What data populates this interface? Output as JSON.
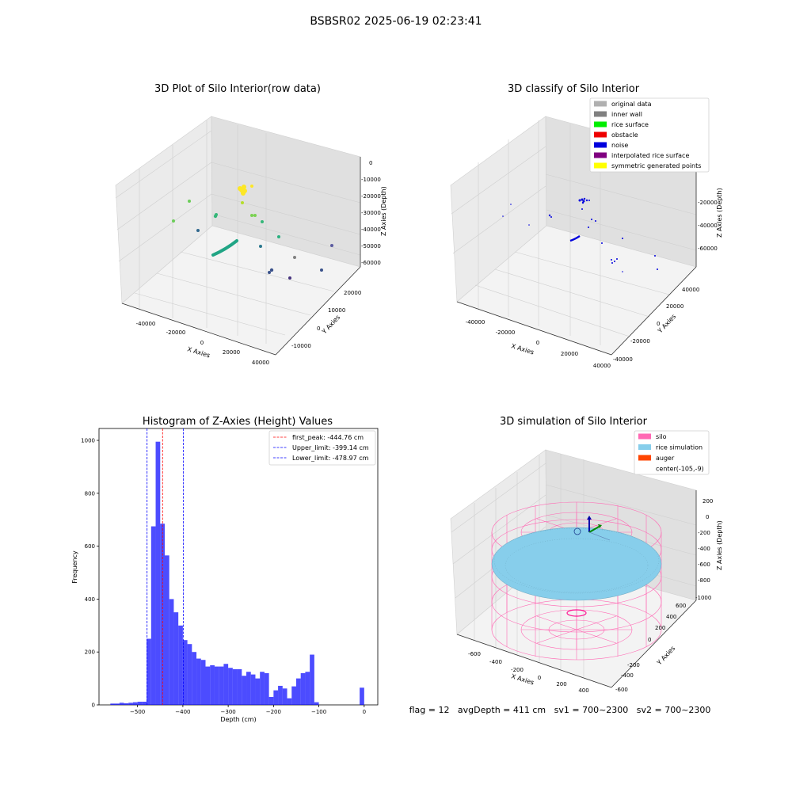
{
  "figure": {
    "suptitle": "BSBSR02 2025-06-19 02:23:41"
  },
  "panels": {
    "raw": {
      "title": "3D Plot of Silo Interior(row data)",
      "xlabel": "X Axies",
      "ylabel": "Y Axies",
      "zlabel": "Z Axies (Depth)",
      "xticks": [
        "-40000",
        "-20000",
        "0",
        "20000",
        "40000"
      ],
      "yticks": [
        "-10000",
        "0",
        "10000",
        "20000"
      ],
      "zticks": [
        "0",
        "-10000",
        "-20000",
        "-30000",
        "-40000",
        "-50000",
        "-60000"
      ]
    },
    "classify": {
      "title": "3D classify of Silo Interior",
      "xlabel": "X Axies",
      "ylabel": "Y Axies",
      "zlabel": "Z Axies (Depth)",
      "xticks": [
        "-40000",
        "-20000",
        "0",
        "20000",
        "40000"
      ],
      "yticks": [
        "-40000",
        "-20000",
        "0",
        "20000",
        "40000"
      ],
      "zticks": [
        "-20000",
        "-40000",
        "-60000"
      ],
      "legend": [
        {
          "label": "original data",
          "color": "#b0b0b0"
        },
        {
          "label": "inner wall",
          "color": "#808080"
        },
        {
          "label": "rice surface",
          "color": "#00ee00"
        },
        {
          "label": "obstacle",
          "color": "#ee0000"
        },
        {
          "label": "noise",
          "color": "#0000dd"
        },
        {
          "label": "interpolated rice surface",
          "color": "#800080"
        },
        {
          "label": "symmetric generated points",
          "color": "#ffff00"
        }
      ]
    },
    "simulation": {
      "title": "3D simulation of Silo Interior",
      "xlabel": "X Axies",
      "ylabel": "Y Axies",
      "zlabel": "Z Axies (Depth)",
      "xticks": [
        "-600",
        "-400",
        "-200",
        "0",
        "200",
        "400"
      ],
      "yticks": [
        "-600",
        "-400",
        "-200",
        "0",
        "200",
        "400",
        "600"
      ],
      "zticks": [
        "200",
        "0",
        "-200",
        "-400",
        "-600",
        "-800",
        "-1000"
      ],
      "legend": [
        {
          "label": "silo",
          "color": "#ff69b4"
        },
        {
          "label": "rice simulation",
          "color": "#87ceeb"
        },
        {
          "label": "auger",
          "color": "#ff4500"
        },
        {
          "label": "center(-105,-9)",
          "color": ""
        }
      ],
      "status_text": "flag = 12   avgDepth = 411 cm   sv1 = 700~2300   sv2 = 700~2300"
    }
  },
  "chart_data": {
    "type": "bar",
    "title": "Histogram of Z-Axies (Height) Values",
    "xlabel": "Depth (cm)",
    "ylabel": "Frequency",
    "xlim": [
      -585,
      30
    ],
    "ylim": [
      0,
      1045
    ],
    "xticks": [
      -500,
      -400,
      -300,
      -200,
      -100,
      0
    ],
    "yticks": [
      0,
      200,
      400,
      600,
      800,
      1000
    ],
    "bin_width": 10,
    "bins": [
      [
        -555,
        5
      ],
      [
        -545,
        5
      ],
      [
        -535,
        8
      ],
      [
        -525,
        6
      ],
      [
        -515,
        8
      ],
      [
        -505,
        10
      ],
      [
        -495,
        12
      ],
      [
        -485,
        12
      ],
      [
        -475,
        250
      ],
      [
        -465,
        675
      ],
      [
        -455,
        995
      ],
      [
        -445,
        685
      ],
      [
        -435,
        565
      ],
      [
        -425,
        400
      ],
      [
        -415,
        350
      ],
      [
        -405,
        300
      ],
      [
        -395,
        245
      ],
      [
        -385,
        230
      ],
      [
        -375,
        200
      ],
      [
        -365,
        175
      ],
      [
        -355,
        170
      ],
      [
        -345,
        145
      ],
      [
        -335,
        150
      ],
      [
        -325,
        145
      ],
      [
        -315,
        145
      ],
      [
        -305,
        155
      ],
      [
        -295,
        140
      ],
      [
        -285,
        135
      ],
      [
        -275,
        135
      ],
      [
        -265,
        110
      ],
      [
        -255,
        125
      ],
      [
        -245,
        115
      ],
      [
        -235,
        100
      ],
      [
        -225,
        125
      ],
      [
        -215,
        120
      ],
      [
        -205,
        30
      ],
      [
        -195,
        55
      ],
      [
        -185,
        72
      ],
      [
        -175,
        62
      ],
      [
        -165,
        25
      ],
      [
        -155,
        70
      ],
      [
        -145,
        100
      ],
      [
        -135,
        120
      ],
      [
        -125,
        125
      ],
      [
        -115,
        190
      ],
      [
        -105,
        10
      ],
      [
        -5,
        65
      ]
    ],
    "color": "#0000ff",
    "vlines": [
      {
        "x": -444.76,
        "color": "#ff0000",
        "label": "first_peak: -444.76 cm"
      },
      {
        "x": -399.14,
        "color": "#0000ff",
        "label": "Upper_limit: -399.14 cm"
      },
      {
        "x": -478.97,
        "color": "#0000ff",
        "label": "Lower_limit: -478.97 cm"
      }
    ],
    "legend_placement": "top-right"
  }
}
